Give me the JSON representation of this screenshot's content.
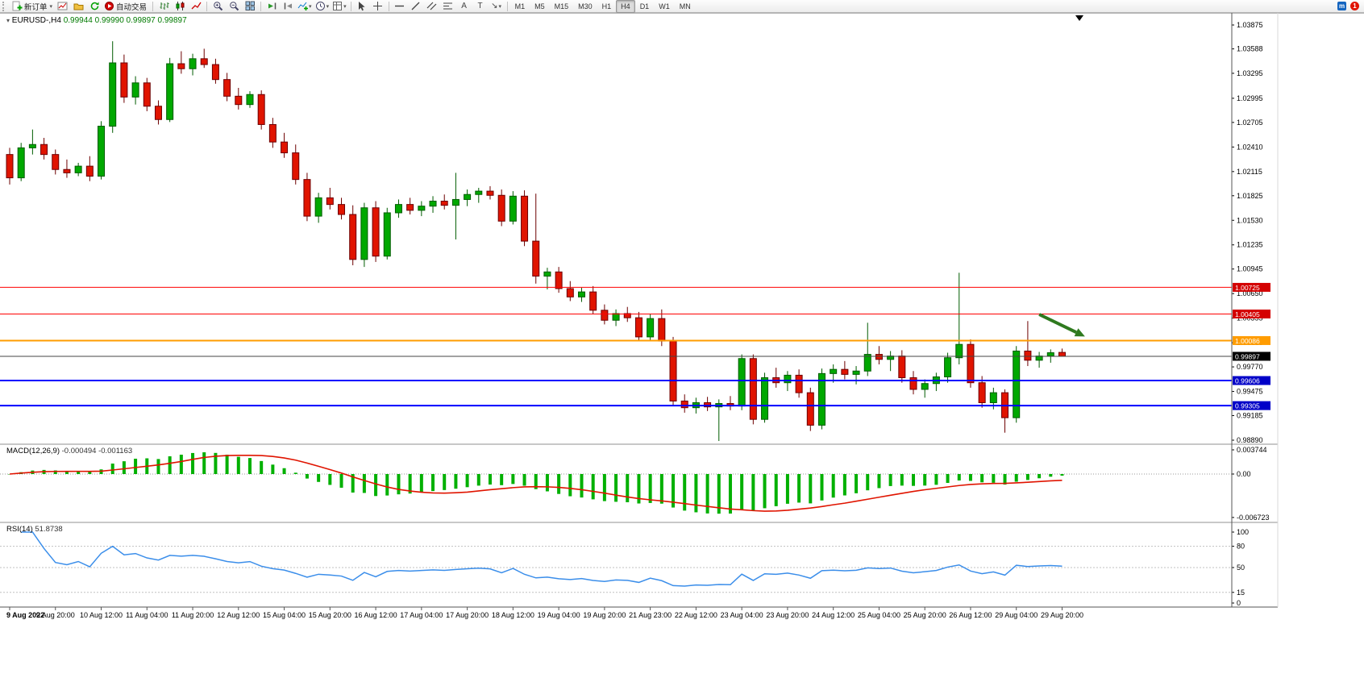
{
  "toolbar": {
    "new_order_label": "新订单",
    "autotrading_label": "自动交易",
    "timeframes": [
      "M1",
      "M5",
      "M15",
      "M30",
      "H1",
      "H4",
      "D1",
      "W1",
      "MN"
    ],
    "active_timeframe": "H4",
    "notification_count": "1",
    "community_initial": "m",
    "icons": [
      "new-order",
      "new-chart",
      "profiles",
      "refresh",
      "autotrading",
      "bars",
      "candlesticks",
      "line-chart",
      "zoom-in",
      "zoom-out",
      "tile-windows",
      "auto-scroll",
      "chart-shift",
      "indicators",
      "periods",
      "templates",
      "cursor",
      "crosshair",
      "horizontal-line",
      "trendline",
      "equidistant-channel",
      "fibonacci",
      "text",
      "text-label",
      "arrows",
      "community",
      "notifications"
    ]
  },
  "chart": {
    "info": {
      "symbol_period": "EURUSD-,H4",
      "ohlc": "0.99944 0.99990 0.99897 0.99897"
    },
    "price_axis": [
      "1.03875",
      "1.03588",
      "1.03295",
      "1.02995",
      "1.02705",
      "1.02410",
      "1.02115",
      "1.01825",
      "1.01530",
      "1.01235",
      "1.00945",
      "1.00650",
      "1.00355",
      "1.00060",
      "0.99770",
      "0.99475",
      "0.99185",
      "0.98890"
    ],
    "lines": [
      {
        "price": 1.00725,
        "label": "1.00725",
        "color": "#ff0000",
        "tag_bg": "#d40000",
        "width": 1
      },
      {
        "price": 1.00405,
        "label": "1.00405",
        "color": "#ff0000",
        "tag_bg": "#d40000",
        "width": 1
      },
      {
        "price": 1.00086,
        "label": "1.00086",
        "color": "#ff9c00",
        "tag_bg": "#ff9c00",
        "width": 2
      },
      {
        "price": 0.99606,
        "label": "0.99606",
        "color": "#0000ff",
        "tag_bg": "#0000c8",
        "width": 2
      },
      {
        "price": 0.99305,
        "label": "0.99305",
        "color": "#0000ff",
        "tag_bg": "#0000c8",
        "width": 2
      }
    ],
    "current_price": {
      "price": 0.99897,
      "label": "0.99897",
      "tag_bg": "#000000"
    },
    "arrow": {
      "from_index": 90,
      "from_price": 1.004,
      "to_index": 94,
      "to_price": 1.00135,
      "color": "#2f7a1f"
    },
    "time_axis": [
      "9 Aug 2022",
      "9 Aug 20:00",
      "10 Aug 12:00",
      "11 Aug 04:00",
      "11 Aug 20:00",
      "12 Aug 12:00",
      "15 Aug 04:00",
      "15 Aug 20:00",
      "16 Aug 12:00",
      "17 Aug 04:00",
      "17 Aug 20:00",
      "18 Aug 12:00",
      "19 Aug 04:00",
      "19 Aug 20:00",
      "21 Aug 23:00",
      "22 Aug 12:00",
      "23 Aug 04:00",
      "23 Aug 20:00",
      "24 Aug 12:00",
      "25 Aug 04:00",
      "25 Aug 20:00",
      "26 Aug 12:00",
      "29 Aug 04:00",
      "29 Aug 20:00"
    ]
  },
  "macd": {
    "title": "MACD(12,26,9)",
    "values": "-0.000494 -0.001163",
    "axis": [
      {
        "label": "0.003744",
        "value": 0.003744
      },
      {
        "label": "0.00",
        "value": 0
      },
      {
        "label": "-0.006723",
        "value": -0.006723
      }
    ],
    "histogram_color": "#00b000",
    "signal_color": "#e01400"
  },
  "rsi": {
    "title": "RSI(14)",
    "value": "51.8738",
    "axis": [
      {
        "label": "100",
        "value": 100
      },
      {
        "label": "80",
        "value": 80
      },
      {
        "label": "50",
        "value": 50
      },
      {
        "label": "15",
        "value": 15
      },
      {
        "label": "0",
        "value": 0
      }
    ],
    "levels": [
      80,
      50,
      15
    ],
    "line_color": "#3b8eea"
  },
  "chart_data": {
    "type": "candlestick",
    "symbol": "EURUSD-",
    "period": "H4",
    "ylim": [
      0.9889,
      1.03875
    ],
    "indicators": [
      {
        "type": "MACD",
        "fast": 12,
        "slow": 26,
        "signal": 9
      },
      {
        "type": "RSI",
        "period": 14
      }
    ],
    "ohlc": [
      [
        1.0232,
        1.024,
        1.0196,
        1.0204
      ],
      [
        1.0204,
        1.0246,
        1.02,
        1.024
      ],
      [
        1.024,
        1.0262,
        1.0232,
        1.0244
      ],
      [
        1.0244,
        1.0252,
        1.0226,
        1.0232
      ],
      [
        1.0232,
        1.0238,
        1.0208,
        1.0214
      ],
      [
        1.0214,
        1.0226,
        1.0204,
        1.021
      ],
      [
        1.021,
        1.0222,
        1.0206,
        1.0218
      ],
      [
        1.0218,
        1.023,
        1.02,
        1.0206
      ],
      [
        1.0206,
        1.0272,
        1.0202,
        1.0266
      ],
      [
        1.0266,
        1.0368,
        1.0258,
        1.0342
      ],
      [
        1.0342,
        1.0352,
        1.0294,
        1.0301
      ],
      [
        1.0301,
        1.0326,
        1.0292,
        1.0318
      ],
      [
        1.0318,
        1.0324,
        1.0284,
        1.029
      ],
      [
        1.029,
        1.0297,
        1.0268,
        1.0274
      ],
      [
        1.0274,
        1.0348,
        1.0271,
        1.0341
      ],
      [
        1.0341,
        1.0356,
        1.0329,
        1.0335
      ],
      [
        1.0335,
        1.0353,
        1.0327,
        1.0347
      ],
      [
        1.0347,
        1.0359,
        1.0336,
        1.034
      ],
      [
        1.034,
        1.0347,
        1.0317,
        1.0322
      ],
      [
        1.0322,
        1.033,
        1.0296,
        1.0302
      ],
      [
        1.0302,
        1.0312,
        1.0286,
        1.0292
      ],
      [
        1.0292,
        1.0308,
        1.0288,
        1.0304
      ],
      [
        1.0304,
        1.0309,
        1.0262,
        1.0268
      ],
      [
        1.0268,
        1.0276,
        1.024,
        1.0247
      ],
      [
        1.0247,
        1.0258,
        1.0228,
        1.0234
      ],
      [
        1.0234,
        1.0244,
        1.0196,
        1.0202
      ],
      [
        1.0202,
        1.021,
        1.0152,
        1.0158
      ],
      [
        1.0158,
        1.0186,
        1.015,
        1.018
      ],
      [
        1.018,
        1.0192,
        1.0166,
        1.0172
      ],
      [
        1.0172,
        1.018,
        1.0154,
        1.016
      ],
      [
        1.016,
        1.0171,
        1.0099,
        1.0106
      ],
      [
        1.0106,
        1.0174,
        1.0097,
        1.0168
      ],
      [
        1.0168,
        1.0176,
        1.0103,
        1.011
      ],
      [
        1.011,
        1.0168,
        1.0106,
        1.0162
      ],
      [
        1.0162,
        1.0178,
        1.0156,
        1.0172
      ],
      [
        1.0172,
        1.018,
        1.016,
        1.0165
      ],
      [
        1.0165,
        1.0176,
        1.0158,
        1.017
      ],
      [
        1.017,
        1.0182,
        1.0162,
        1.0176
      ],
      [
        1.0176,
        1.0184,
        1.0166,
        1.0171
      ],
      [
        1.0171,
        1.021,
        1.013,
        1.0178
      ],
      [
        1.0178,
        1.019,
        1.017,
        1.0184
      ],
      [
        1.0184,
        1.0192,
        1.0174,
        1.0188
      ],
      [
        1.0188,
        1.0194,
        1.0178,
        1.0183
      ],
      [
        1.0183,
        1.019,
        1.0146,
        1.0152
      ],
      [
        1.0152,
        1.0188,
        1.0148,
        1.0182
      ],
      [
        1.0182,
        1.0189,
        1.0122,
        1.0128
      ],
      [
        1.0128,
        1.0185,
        1.0077,
        1.0086
      ],
      [
        1.0086,
        1.0096,
        1.007,
        1.0091
      ],
      [
        1.0091,
        1.0097,
        1.0066,
        1.0071
      ],
      [
        1.0071,
        1.008,
        1.0056,
        1.0061
      ],
      [
        1.0061,
        1.0072,
        1.0055,
        1.0067
      ],
      [
        1.0067,
        1.0074,
        1.004,
        1.0045
      ],
      [
        1.0045,
        1.0052,
        1.0028,
        1.0033
      ],
      [
        1.0033,
        1.0046,
        1.0026,
        1.0041
      ],
      [
        1.0041,
        1.0049,
        1.0031,
        1.0036
      ],
      [
        1.0036,
        1.0043,
        1.0008,
        1.0013
      ],
      [
        1.0013,
        1.004,
        1.0009,
        1.0035
      ],
      [
        1.0035,
        1.0046,
        1.0002,
        1.0008
      ],
      [
        1.0008,
        1.0013,
        0.993,
        0.9936
      ],
      [
        0.9936,
        0.9944,
        0.9922,
        0.9928
      ],
      [
        0.9928,
        0.994,
        0.9921,
        0.9934
      ],
      [
        0.9934,
        0.9941,
        0.9924,
        0.9929
      ],
      [
        0.9929,
        0.9938,
        0.9888,
        0.9933
      ],
      [
        0.9933,
        0.9942,
        0.9925,
        0.993
      ],
      [
        0.993,
        0.9992,
        0.9925,
        0.9987
      ],
      [
        0.9987,
        0.9992,
        0.9908,
        0.9914
      ],
      [
        0.9914,
        0.997,
        0.991,
        0.9964
      ],
      [
        0.9964,
        0.9976,
        0.9952,
        0.9958
      ],
      [
        0.9958,
        0.9972,
        0.9948,
        0.9967
      ],
      [
        0.9967,
        0.9974,
        0.994,
        0.9946
      ],
      [
        0.9946,
        0.9952,
        0.99,
        0.9907
      ],
      [
        0.9907,
        0.9975,
        0.9902,
        0.9969
      ],
      [
        0.9969,
        0.998,
        0.9958,
        0.9974
      ],
      [
        0.9974,
        0.9984,
        0.9962,
        0.9968
      ],
      [
        0.9968,
        0.9978,
        0.9956,
        0.9972
      ],
      [
        0.9972,
        1.003,
        0.9966,
        0.9992
      ],
      [
        0.9992,
        1.0002,
        0.998,
        0.9986
      ],
      [
        0.9986,
        0.9996,
        0.9972,
        0.999
      ],
      [
        0.999,
        0.9997,
        0.9958,
        0.9964
      ],
      [
        0.9964,
        0.9972,
        0.9944,
        0.995
      ],
      [
        0.995,
        0.9962,
        0.994,
        0.9957
      ],
      [
        0.9957,
        0.997,
        0.9948,
        0.9965
      ],
      [
        0.9965,
        0.9994,
        0.9958,
        0.9988
      ],
      [
        0.9988,
        1.009,
        0.998,
        1.0004
      ],
      [
        1.0004,
        1.001,
        0.9952,
        0.9958
      ],
      [
        0.9958,
        0.9966,
        0.9928,
        0.9934
      ],
      [
        0.9934,
        0.9952,
        0.9926,
        0.9946
      ],
      [
        0.9946,
        0.995,
        0.9898,
        0.9916
      ],
      [
        0.9916,
        1.0002,
        0.991,
        0.9996
      ],
      [
        0.9996,
        1.0032,
        0.9978,
        0.9985
      ],
      [
        0.9985,
        0.9995,
        0.9976,
        0.999
      ],
      [
        0.999,
        0.9998,
        0.9982,
        0.9994
      ],
      [
        0.99944,
        0.9999,
        0.99897,
        0.99897
      ]
    ]
  }
}
